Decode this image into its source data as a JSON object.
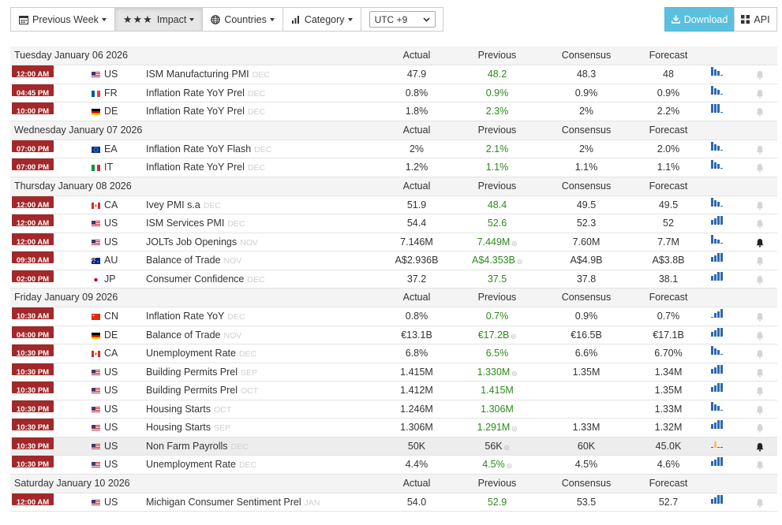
{
  "toolbar": {
    "previous_week_label": "Previous Week",
    "impact_label": "Impact",
    "countries_label": "Countries",
    "category_label": "Category",
    "timezone_value": "UTC +9",
    "download_label": "Download",
    "api_label": "API"
  },
  "columns": {
    "actual": "Actual",
    "previous": "Previous",
    "consensus": "Consensus",
    "forecast": "Forecast"
  },
  "colors": {
    "time_badge": "#a2282a",
    "previous_value": "#2c8a19",
    "download_button": "#5bc0de",
    "mini_chart": "#2e68b0"
  },
  "days": [
    {
      "date": "Tuesday January 06 2026",
      "events": [
        {
          "time": "12:00 AM",
          "country": "US",
          "event": "ISM Manufacturing PMI",
          "ref": "DEC",
          "actual": "47.9",
          "previous": "48.2",
          "consensus": "48.3",
          "forecast": "48",
          "bell": false
        },
        {
          "time": "04:45 PM",
          "country": "FR",
          "event": "Inflation Rate YoY Prel",
          "ref": "DEC",
          "actual": "0.8%",
          "previous": "0.9%",
          "consensus": "0.9%",
          "forecast": "0.9%",
          "bell": false
        },
        {
          "time": "10:00 PM",
          "country": "DE",
          "event": "Inflation Rate YoY Prel",
          "ref": "DEC",
          "actual": "1.8%",
          "previous": "2.3%",
          "consensus": "2%",
          "forecast": "2.2%",
          "bell": false
        }
      ]
    },
    {
      "date": "Wednesday January 07 2026",
      "events": [
        {
          "time": "07:00 PM",
          "country": "EA",
          "event": "Inflation Rate YoY Flash",
          "ref": "DEC",
          "actual": "2%",
          "previous": "2.1%",
          "consensus": "2%",
          "forecast": "2.0%",
          "bell": false
        },
        {
          "time": "07:00 PM",
          "country": "IT",
          "event": "Inflation Rate YoY Prel",
          "ref": "DEC",
          "actual": "1.2%",
          "previous": "1.1%",
          "consensus": "1.1%",
          "forecast": "1.1%",
          "bell": false
        }
      ]
    },
    {
      "date": "Thursday January 08 2026",
      "events": [
        {
          "time": "12:00 AM",
          "country": "CA",
          "event": "Ivey PMI s.a",
          "ref": "DEC",
          "actual": "51.9",
          "previous": "48.4",
          "consensus": "49.5",
          "forecast": "49.5",
          "bell": false
        },
        {
          "time": "12:00 AM",
          "country": "US",
          "event": "ISM Services PMI",
          "ref": "DEC",
          "actual": "54.4",
          "previous": "52.6",
          "consensus": "52.3",
          "forecast": "52",
          "bell": false
        },
        {
          "time": "12:00 AM",
          "country": "US",
          "event": "JOLTs Job Openings",
          "ref": "NOV",
          "actual": "7.146M",
          "previous": "7.449M",
          "revised": true,
          "consensus": "7.60M",
          "forecast": "7.7M",
          "bell": true
        },
        {
          "time": "09:30 AM",
          "country": "AU",
          "event": "Balance of Trade",
          "ref": "NOV",
          "actual": "A$2.936B",
          "previous": "A$4.353B",
          "revised": true,
          "consensus": "A$4.9B",
          "forecast": "A$3.8B",
          "bell": false
        },
        {
          "time": "02:00 PM",
          "country": "JP",
          "event": "Consumer Confidence",
          "ref": "DEC",
          "actual": "37.2",
          "previous": "37.5",
          "consensus": "37.8",
          "forecast": "38.1",
          "bell": false
        }
      ]
    },
    {
      "date": "Friday January 09 2026",
      "events": [
        {
          "time": "10:30 AM",
          "country": "CN",
          "event": "Inflation Rate YoY",
          "ref": "DEC",
          "actual": "0.8%",
          "previous": "0.7%",
          "consensus": "0.9%",
          "forecast": "0.7%",
          "bell": false
        },
        {
          "time": "04:00 PM",
          "country": "DE",
          "event": "Balance of Trade",
          "ref": "NOV",
          "actual": "€13.1B",
          "previous": "€17.2B",
          "revised": true,
          "consensus": "€16.5B",
          "forecast": "€17.1B",
          "bell": false
        },
        {
          "time": "10:30 PM",
          "country": "CA",
          "event": "Unemployment Rate",
          "ref": "DEC",
          "actual": "6.8%",
          "previous": "6.5%",
          "consensus": "6.6%",
          "forecast": "6.70%",
          "bell": false
        },
        {
          "time": "10:30 PM",
          "country": "US",
          "event": "Building Permits Prel",
          "ref": "SEP",
          "actual": "1.415M",
          "previous": "1.330M",
          "revised": true,
          "consensus": "1.35M",
          "forecast": "1.34M",
          "bell": false
        },
        {
          "time": "10:30 PM",
          "country": "US",
          "event": "Building Permits Prel",
          "ref": "OCT",
          "actual": "1.412M",
          "previous": "1.415M",
          "consensus": "",
          "forecast": "1.35M",
          "bell": false
        },
        {
          "time": "10:30 PM",
          "country": "US",
          "event": "Housing Starts",
          "ref": "OCT",
          "actual": "1.246M",
          "previous": "1.306M",
          "consensus": "",
          "forecast": "1.33M",
          "bell": false
        },
        {
          "time": "10:30 PM",
          "country": "US",
          "event": "Housing Starts",
          "ref": "SEP",
          "actual": "1.306M",
          "previous": "1.291M",
          "revised": true,
          "consensus": "1.33M",
          "forecast": "1.32M",
          "bell": false
        },
        {
          "time": "10:30 PM",
          "country": "US",
          "event": "Non Farm Payrolls",
          "ref": "DEC",
          "actual": "50K",
          "previous": "56K",
          "revised": true,
          "previous_color": "#333333",
          "consensus": "60K",
          "forecast": "45.0K",
          "bell": true,
          "highlight": true
        },
        {
          "time": "10:30 PM",
          "country": "US",
          "event": "Unemployment Rate",
          "ref": "DEC",
          "actual": "4.4%",
          "previous": "4.5%",
          "revised": true,
          "consensus": "4.5%",
          "forecast": "4.6%",
          "bell": false
        }
      ]
    },
    {
      "date": "Saturday January 10 2026",
      "events": [
        {
          "time": "12:00 AM",
          "country": "US",
          "event": "Michigan Consumer Sentiment Prel",
          "ref": "JAN",
          "actual": "54.0",
          "previous": "52.9",
          "consensus": "53.5",
          "forecast": "52.7",
          "bell": false
        }
      ]
    }
  ]
}
